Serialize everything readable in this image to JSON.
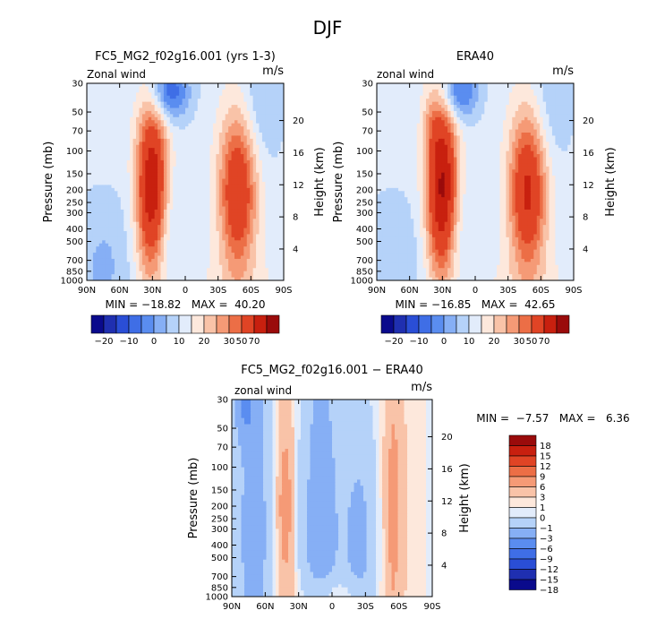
{
  "title": "DJF",
  "chart_data": [
    {
      "type": "heatmap",
      "panel_title": "FC5_MG2_f02g16.001 (yrs 1-3)",
      "field_label": "Zonal wind",
      "units": "m/s",
      "ylabel": "Pressure (mb)",
      "y2label": "Height (km)",
      "x_ticks": [
        "90N",
        "60N",
        "30N",
        "0",
        "30S",
        "60S",
        "90S"
      ],
      "y_ticks": [
        "30",
        "50",
        "70",
        "100",
        "150",
        "200",
        "250",
        "300",
        "400",
        "500",
        "700",
        "850",
        "1000"
      ],
      "y2_ticks": [
        "20",
        "16",
        "12",
        "8",
        "4"
      ],
      "stats": "MIN = −18.82   MAX =  40.20",
      "blobs": [
        {
          "lat": 15,
          "p": 35,
          "rlat": 13,
          "rdec": 0.35,
          "amp": -22
        },
        {
          "lat": 20,
          "p": 420,
          "rlat": 10,
          "rdec": 0.9,
          "amp": -9
        },
        {
          "lat": 75,
          "p": 800,
          "rlat": 20,
          "rdec": 0.9,
          "amp": -8
        },
        {
          "lat": -45,
          "p": 1000,
          "rlat": 45,
          "rdec": 0.3,
          "amp": 3
        },
        {
          "lat": -70,
          "p": 40,
          "rlat": 14,
          "rdec": 0.8,
          "amp": -8
        },
        {
          "lat": 30,
          "p": 200,
          "rlat": 10,
          "rdec": 1.1,
          "amp": 44
        },
        {
          "lat": -48,
          "p": 210,
          "rlat": 12,
          "rdec": 1.0,
          "amp": 33
        }
      ],
      "base": 7
    },
    {
      "type": "heatmap",
      "panel_title": "ERA40",
      "field_label": "zonal wind",
      "units": "m/s",
      "ylabel": "Pressure (mb)",
      "y2label": "Height (km)",
      "x_ticks": [
        "90N",
        "60N",
        "30N",
        "0",
        "30S",
        "60S",
        "90S"
      ],
      "y_ticks": [
        "30",
        "50",
        "70",
        "100",
        "150",
        "200",
        "250",
        "300",
        "400",
        "500",
        "700",
        "850",
        "1000"
      ],
      "y2_ticks": [
        "20",
        "16",
        "12",
        "8",
        "4"
      ],
      "stats": "MIN = −16.85   MAX =  42.65",
      "blobs": [
        {
          "lat": 15,
          "p": 35,
          "rlat": 12,
          "rdec": 0.35,
          "amp": -20
        },
        {
          "lat": 20,
          "p": 420,
          "rlat": 10,
          "rdec": 0.9,
          "amp": -7
        },
        {
          "lat": 75,
          "p": 800,
          "rlat": 20,
          "rdec": 0.9,
          "amp": -7
        },
        {
          "lat": -45,
          "p": 1000,
          "rlat": 45,
          "rdec": 0.3,
          "amp": 3
        },
        {
          "lat": -70,
          "p": 40,
          "rlat": 14,
          "rdec": 0.8,
          "amp": -7
        },
        {
          "lat": 30,
          "p": 200,
          "rlat": 10,
          "rdec": 1.1,
          "amp": 47
        },
        {
          "lat": -48,
          "p": 210,
          "rlat": 12,
          "rdec": 1.0,
          "amp": 35
        },
        {
          "lat": 40,
          "p": 60,
          "rlat": 6,
          "rdec": 0.4,
          "amp": 6
        }
      ],
      "base": 7
    },
    {
      "type": "heatmap",
      "panel_title": "FC5_MG2_f02g16.001 − ERA40",
      "field_label": "zonal wind",
      "units": "m/s",
      "ylabel": "Pressure (mb)",
      "y2label": "Height (km)",
      "x_ticks": [
        "90N",
        "60N",
        "30N",
        "0",
        "30S",
        "60S",
        "90S"
      ],
      "y_ticks": [
        "30",
        "50",
        "70",
        "100",
        "150",
        "200",
        "250",
        "300",
        "400",
        "500",
        "700",
        "850",
        "1000"
      ],
      "y2_ticks": [
        "20",
        "16",
        "12",
        "8",
        "4"
      ],
      "stats": "MIN =  −7.57   MAX =   6.36",
      "blobs": [
        {
          "lat": 42,
          "p": 200,
          "rlat": 7,
          "rdec": 3.0,
          "amp": 4
        },
        {
          "lat": 42,
          "p": 200,
          "rlat": 3,
          "rdec": 0.5,
          "amp": 3
        },
        {
          "lat": -55,
          "p": 200,
          "rlat": 7,
          "rdec": 3.0,
          "amp": 4
        },
        {
          "lat": -55,
          "p": 200,
          "rlat": 3,
          "rdec": 0.5,
          "amp": 2.5
        },
        {
          "lat": -75,
          "p": 200,
          "rlat": 7,
          "rdec": 3.0,
          "amp": 1.5
        },
        {
          "lat": 10,
          "p": 300,
          "rlat": 14,
          "rdec": 3.0,
          "amp": -3.5
        },
        {
          "lat": 70,
          "p": 300,
          "rlat": 12,
          "rdec": 3.0,
          "amp": -3.5
        },
        {
          "lat": -25,
          "p": 400,
          "rlat": 10,
          "rdec": 1.5,
          "amp": -3
        },
        {
          "lat": 78,
          "p": 35,
          "rlat": 6,
          "rdec": 0.4,
          "amp": -4
        },
        {
          "lat": 0,
          "p": 1000,
          "rlat": 20,
          "rdec": 0.25,
          "amp": 2.5
        }
      ],
      "base": -0.6
    }
  ],
  "colorbar_top": {
    "labels": [
      "−20",
      "−10",
      "0",
      "10",
      "20",
      "30",
      "50",
      "70"
    ],
    "colors": [
      "#0a0a8c",
      "#1f2fb0",
      "#2a4ed6",
      "#3f6ee6",
      "#5a8df0",
      "#86aff5",
      "#b5d2f9",
      "#e2ecfb",
      "#fde8dc",
      "#f9c3a8",
      "#f59a76",
      "#ec6e46",
      "#e04425",
      "#c8200f",
      "#9a0b0b"
    ],
    "levels": [
      -25,
      -20,
      -15,
      -10,
      -5,
      0,
      5,
      10,
      15,
      20,
      25,
      30,
      40,
      50,
      60
    ]
  },
  "colorbar_diff": {
    "labels": [
      "18",
      "15",
      "12",
      "9",
      "6",
      "3",
      "1",
      "0",
      "−1",
      "−3",
      "−6",
      "−9",
      "−12",
      "−15",
      "−18"
    ],
    "colors": [
      "#0a0a8c",
      "#1f2fb0",
      "#2a4ed6",
      "#3f6ee6",
      "#5a8df0",
      "#86aff5",
      "#b5d2f9",
      "#e2ecfb",
      "#fde8dc",
      "#f9c3a8",
      "#f59a76",
      "#ec6e46",
      "#e04425",
      "#c8200f",
      "#9a0b0b"
    ],
    "levels": [
      -18,
      -15,
      -12,
      -9,
      -6,
      -3,
      -1,
      0,
      1,
      3,
      6,
      9,
      12,
      15,
      18
    ]
  }
}
